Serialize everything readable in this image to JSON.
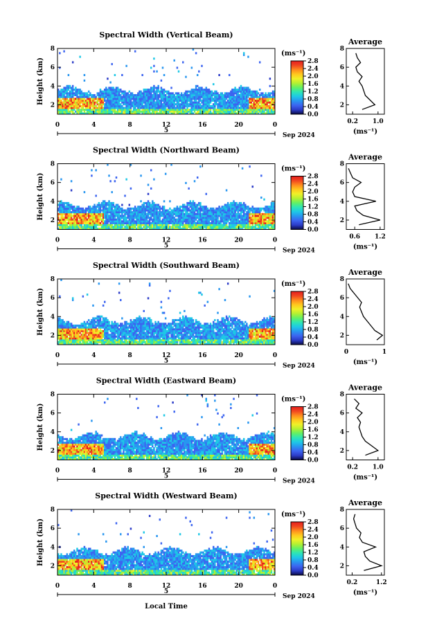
{
  "figure": {
    "xlabel": "Local Time",
    "date_label": "Sep 2024",
    "colorbar_unit": "(ms⁻¹)",
    "colorbar_ticks": [
      "0.0",
      "0.4",
      "0.8",
      "1.2",
      "1.6",
      "2.0",
      "2.4",
      "2.8"
    ],
    "colorbar_colors": [
      "#0a0a46",
      "#2c3cc8",
      "#3c64f0",
      "#2896f0",
      "#1ec8e6",
      "#2ee6b4",
      "#64f064",
      "#b4f032",
      "#f0f028",
      "#ffc81e",
      "#ff8c1e",
      "#f04620",
      "#e61e1e"
    ],
    "x_ticks": [
      "0",
      "4",
      "8",
      "12",
      "16",
      "20",
      "0"
    ],
    "day_label": "5",
    "avg_title": "Average",
    "avg_unit": "(ms⁻¹)"
  },
  "chart_data": [
    {
      "type": "heatmap",
      "title": "Spectral Width (Vertical Beam)",
      "ylabel": "Height (km)",
      "xlim": [
        0,
        24
      ],
      "ylim": [
        1,
        8
      ],
      "yticks": [
        "2",
        "4",
        "6",
        "8"
      ],
      "colorbar_range": [
        0,
        2.8
      ],
      "average_profile": {
        "xlim": [
          0,
          1.2
        ],
        "xticks": [
          "0.2",
          "1.0"
        ],
        "xtick_values": [
          0.2,
          1.0
        ],
        "height": [
          1.5,
          2,
          2.5,
          3,
          3.5,
          4,
          4.5,
          5,
          5.5,
          6,
          6.5,
          7,
          7.5
        ],
        "value": [
          0.5,
          0.9,
          0.75,
          0.6,
          0.55,
          0.5,
          0.4,
          0.5,
          0.35,
          0.3,
          0.45,
          0.35,
          0.3
        ]
      }
    },
    {
      "type": "heatmap",
      "title": "Spectral Width (Northward Beam)",
      "ylabel": "Height (km)",
      "xlim": [
        0,
        24
      ],
      "ylim": [
        1,
        8
      ],
      "yticks": [
        "2",
        "4",
        "6",
        "8"
      ],
      "colorbar_range": [
        0,
        2.8
      ],
      "average_profile": {
        "xlim": [
          0.4,
          1.3
        ],
        "xticks": [
          "0.6",
          "1.2"
        ],
        "xtick_values": [
          0.6,
          1.2
        ],
        "height": [
          1.5,
          2,
          2.5,
          3,
          3.5,
          4,
          4.5,
          5,
          5.5,
          6,
          6.5,
          7,
          7.5
        ],
        "value": [
          0.7,
          1.2,
          0.8,
          0.65,
          0.6,
          1.1,
          0.6,
          0.55,
          0.6,
          0.75,
          0.55,
          0.5,
          0.45
        ]
      }
    },
    {
      "type": "heatmap",
      "title": "Spectral Width (Southward Beam)",
      "ylabel": "Height (km)",
      "xlim": [
        0,
        24
      ],
      "ylim": [
        1,
        8
      ],
      "yticks": [
        "2",
        "4",
        "6",
        "8"
      ],
      "colorbar_range": [
        0,
        2.8
      ],
      "average_profile": {
        "xlim": [
          0,
          1
        ],
        "xticks": [
          "0",
          "1"
        ],
        "xtick_values": [
          0,
          1
        ],
        "height": [
          1.5,
          2,
          2.5,
          3,
          3.5,
          4,
          4.5,
          5,
          5.5,
          6,
          6.5,
          7,
          7.5
        ],
        "value": [
          0.8,
          0.95,
          0.75,
          0.65,
          0.55,
          0.45,
          0.4,
          0.35,
          0.4,
          0.3,
          0.2,
          0.1,
          0.05
        ]
      }
    },
    {
      "type": "heatmap",
      "title": "Spectral Width (Eastward Beam)",
      "ylabel": "Height (km)",
      "xlim": [
        0,
        24
      ],
      "ylim": [
        1,
        8
      ],
      "yticks": [
        "2",
        "4",
        "6",
        "8"
      ],
      "colorbar_range": [
        0,
        2.8
      ],
      "average_profile": {
        "xlim": [
          0,
          1.2
        ],
        "xticks": [
          "0.2",
          "1.0"
        ],
        "xtick_values": [
          0.2,
          1.0
        ],
        "height": [
          1.5,
          2,
          2.5,
          3,
          3.5,
          4,
          4.5,
          5,
          5.5,
          6,
          6.5,
          7,
          7.5
        ],
        "value": [
          0.6,
          1.0,
          0.8,
          0.6,
          0.5,
          0.45,
          0.4,
          0.45,
          0.35,
          0.5,
          0.3,
          0.4,
          0.25
        ]
      }
    },
    {
      "type": "heatmap",
      "title": "Spectral Width (Westward Beam)",
      "ylabel": "Height (km)",
      "xlim": [
        0,
        24
      ],
      "ylim": [
        1,
        8
      ],
      "yticks": [
        "2",
        "4",
        "6",
        "8"
      ],
      "colorbar_range": [
        0,
        2.8
      ],
      "average_profile": {
        "xlim": [
          0,
          1.3
        ],
        "xticks": [
          "0.2",
          "1.2"
        ],
        "xtick_values": [
          0.2,
          1.2
        ],
        "height": [
          1.5,
          2,
          2.5,
          3,
          3.5,
          4,
          4.5,
          5,
          5.5,
          6,
          6.5,
          7,
          7.5
        ],
        "value": [
          0.6,
          1.2,
          0.8,
          0.65,
          0.6,
          1.0,
          0.55,
          0.45,
          0.5,
          0.35,
          0.3,
          0.25,
          0.3
        ]
      }
    }
  ]
}
